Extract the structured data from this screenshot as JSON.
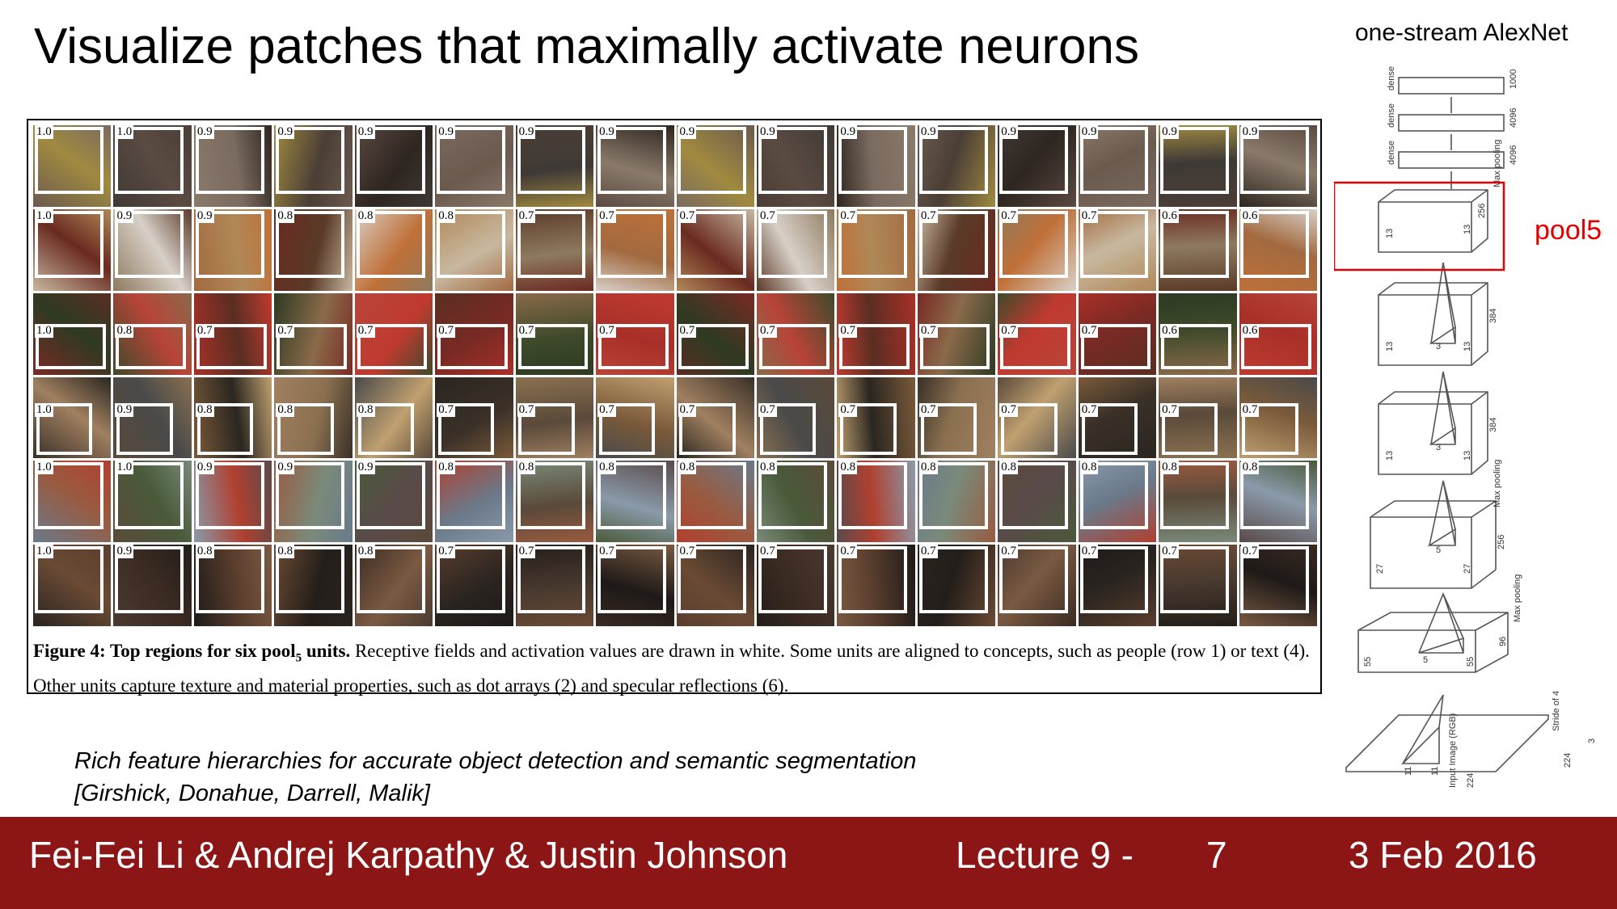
{
  "slide": {
    "title": "Visualize patches that maximally activate neurons",
    "network_title": "one-stream AlexNet",
    "highlight_label": "pool5",
    "citation_line1": "Rich feature hierarchies for accurate object detection and semantic segmentation",
    "citation_line2": "[Girshick, Donahue, Darrell, Malik]"
  },
  "figure": {
    "caption_bold": "Figure 4: Top regions for six pool",
    "caption_bold_sub": "5",
    "caption_bold_end": " units.",
    "caption_rest": " Receptive fields and activation values are drawn in white. Some units are aligned to concepts, such as people (row 1) or text (4). Other units capture texture and material properties, such as dot arrays (2) and specular reflections (6).",
    "rows": [
      {
        "values": [
          "1.0",
          "1.0",
          "0.9",
          "0.9",
          "0.9",
          "0.9",
          "0.9",
          "0.9",
          "0.9",
          "0.9",
          "0.9",
          "0.9",
          "0.9",
          "0.9",
          "0.9",
          "0.9"
        ],
        "palette": [
          "#6b5a4e",
          "#3f3a36",
          "#8a7a6a",
          "#a08a40",
          "#5a4a42",
          "#7a6a60",
          "#4a3e36",
          "#2e2620"
        ]
      },
      {
        "values": [
          "1.0",
          "0.9",
          "0.9",
          "0.8",
          "0.8",
          "0.8",
          "0.7",
          "0.7",
          "0.7",
          "0.7",
          "0.7",
          "0.7",
          "0.7",
          "0.7",
          "0.6",
          "0.6"
        ],
        "palette": [
          "#c8b8a0",
          "#8e7a5e",
          "#a26a40",
          "#6a2a20",
          "#d8d0c8",
          "#b08858",
          "#5a3a28",
          "#c07038"
        ]
      },
      {
        "values": [
          "1.0",
          "0.8",
          "0.7",
          "0.7",
          "0.7",
          "0.7",
          "0.7",
          "0.7",
          "0.7",
          "0.7",
          "0.7",
          "0.7",
          "0.7",
          "0.7",
          "0.6",
          "0.6"
        ],
        "palette": [
          "#7a2a24",
          "#3e4a2a",
          "#a83028",
          "#2e3a22",
          "#b84438",
          "#5a2e22",
          "#8a6a4a",
          "#c03a30"
        ]
      },
      {
        "values": [
          "1.0",
          "0.9",
          "0.8",
          "0.8",
          "0.8",
          "0.7",
          "0.7",
          "0.7",
          "0.7",
          "0.7",
          "0.7",
          "0.7",
          "0.7",
          "0.7",
          "0.7",
          "0.7"
        ],
        "palette": [
          "#3a3028",
          "#5a4a3a",
          "#7a5a3a",
          "#a08060",
          "#4a4a4a",
          "#2a2620",
          "#8a7050",
          "#c0a070"
        ]
      },
      {
        "values": [
          "1.0",
          "1.0",
          "0.9",
          "0.9",
          "0.9",
          "0.8",
          "0.8",
          "0.8",
          "0.8",
          "0.8",
          "0.8",
          "0.8",
          "0.8",
          "0.8",
          "0.8",
          "0.8"
        ],
        "palette": [
          "#6a7a8a",
          "#5a4a3a",
          "#8a9aaa",
          "#9a5a40",
          "#4a5a3a",
          "#b04030",
          "#7a8a7a",
          "#5a4a4a"
        ]
      },
      {
        "values": [
          "1.0",
          "0.9",
          "0.8",
          "0.8",
          "0.8",
          "0.7",
          "0.7",
          "0.7",
          "0.7",
          "0.7",
          "0.7",
          "0.7",
          "0.7",
          "0.7",
          "0.7",
          "0.7"
        ],
        "palette": [
          "#2a2420",
          "#4a3a30",
          "#1e1a18",
          "#6a4a34",
          "#3a2a22",
          "#5a3e2e",
          "#241e1a",
          "#7a5a42"
        ]
      }
    ]
  },
  "footer": {
    "authors": "Fei-Fei Li & Andrej Karpathy & Justin Johnson",
    "lecture": "Lecture 9 -",
    "page": "7",
    "date": "3 Feb 2016"
  },
  "network": {
    "dense_labels": [
      "dense",
      "dense",
      "dense"
    ],
    "dense_sizes": [
      "1000",
      "4096",
      "4096"
    ],
    "pooling_label": "Max pooling",
    "dims": [
      {
        "w": "13",
        "h": "13",
        "d": "256",
        "k": ""
      },
      {
        "w": "13",
        "h": "13",
        "d": "384",
        "k": "3"
      },
      {
        "w": "13",
        "h": "13",
        "d": "384",
        "k": "3"
      },
      {
        "w": "27",
        "h": "27",
        "d": "256",
        "k": "5"
      },
      {
        "w": "55",
        "h": "55",
        "d": "96",
        "k": "5"
      }
    ],
    "input_w": "224",
    "input_h": "224",
    "input_label": "Input Image (RGB)",
    "input_kernel": "11",
    "stride_label": "Stride of 4",
    "input_depth": "3"
  },
  "colors": {
    "footer_bg": "#8c1515",
    "highlight": "#e30000"
  }
}
